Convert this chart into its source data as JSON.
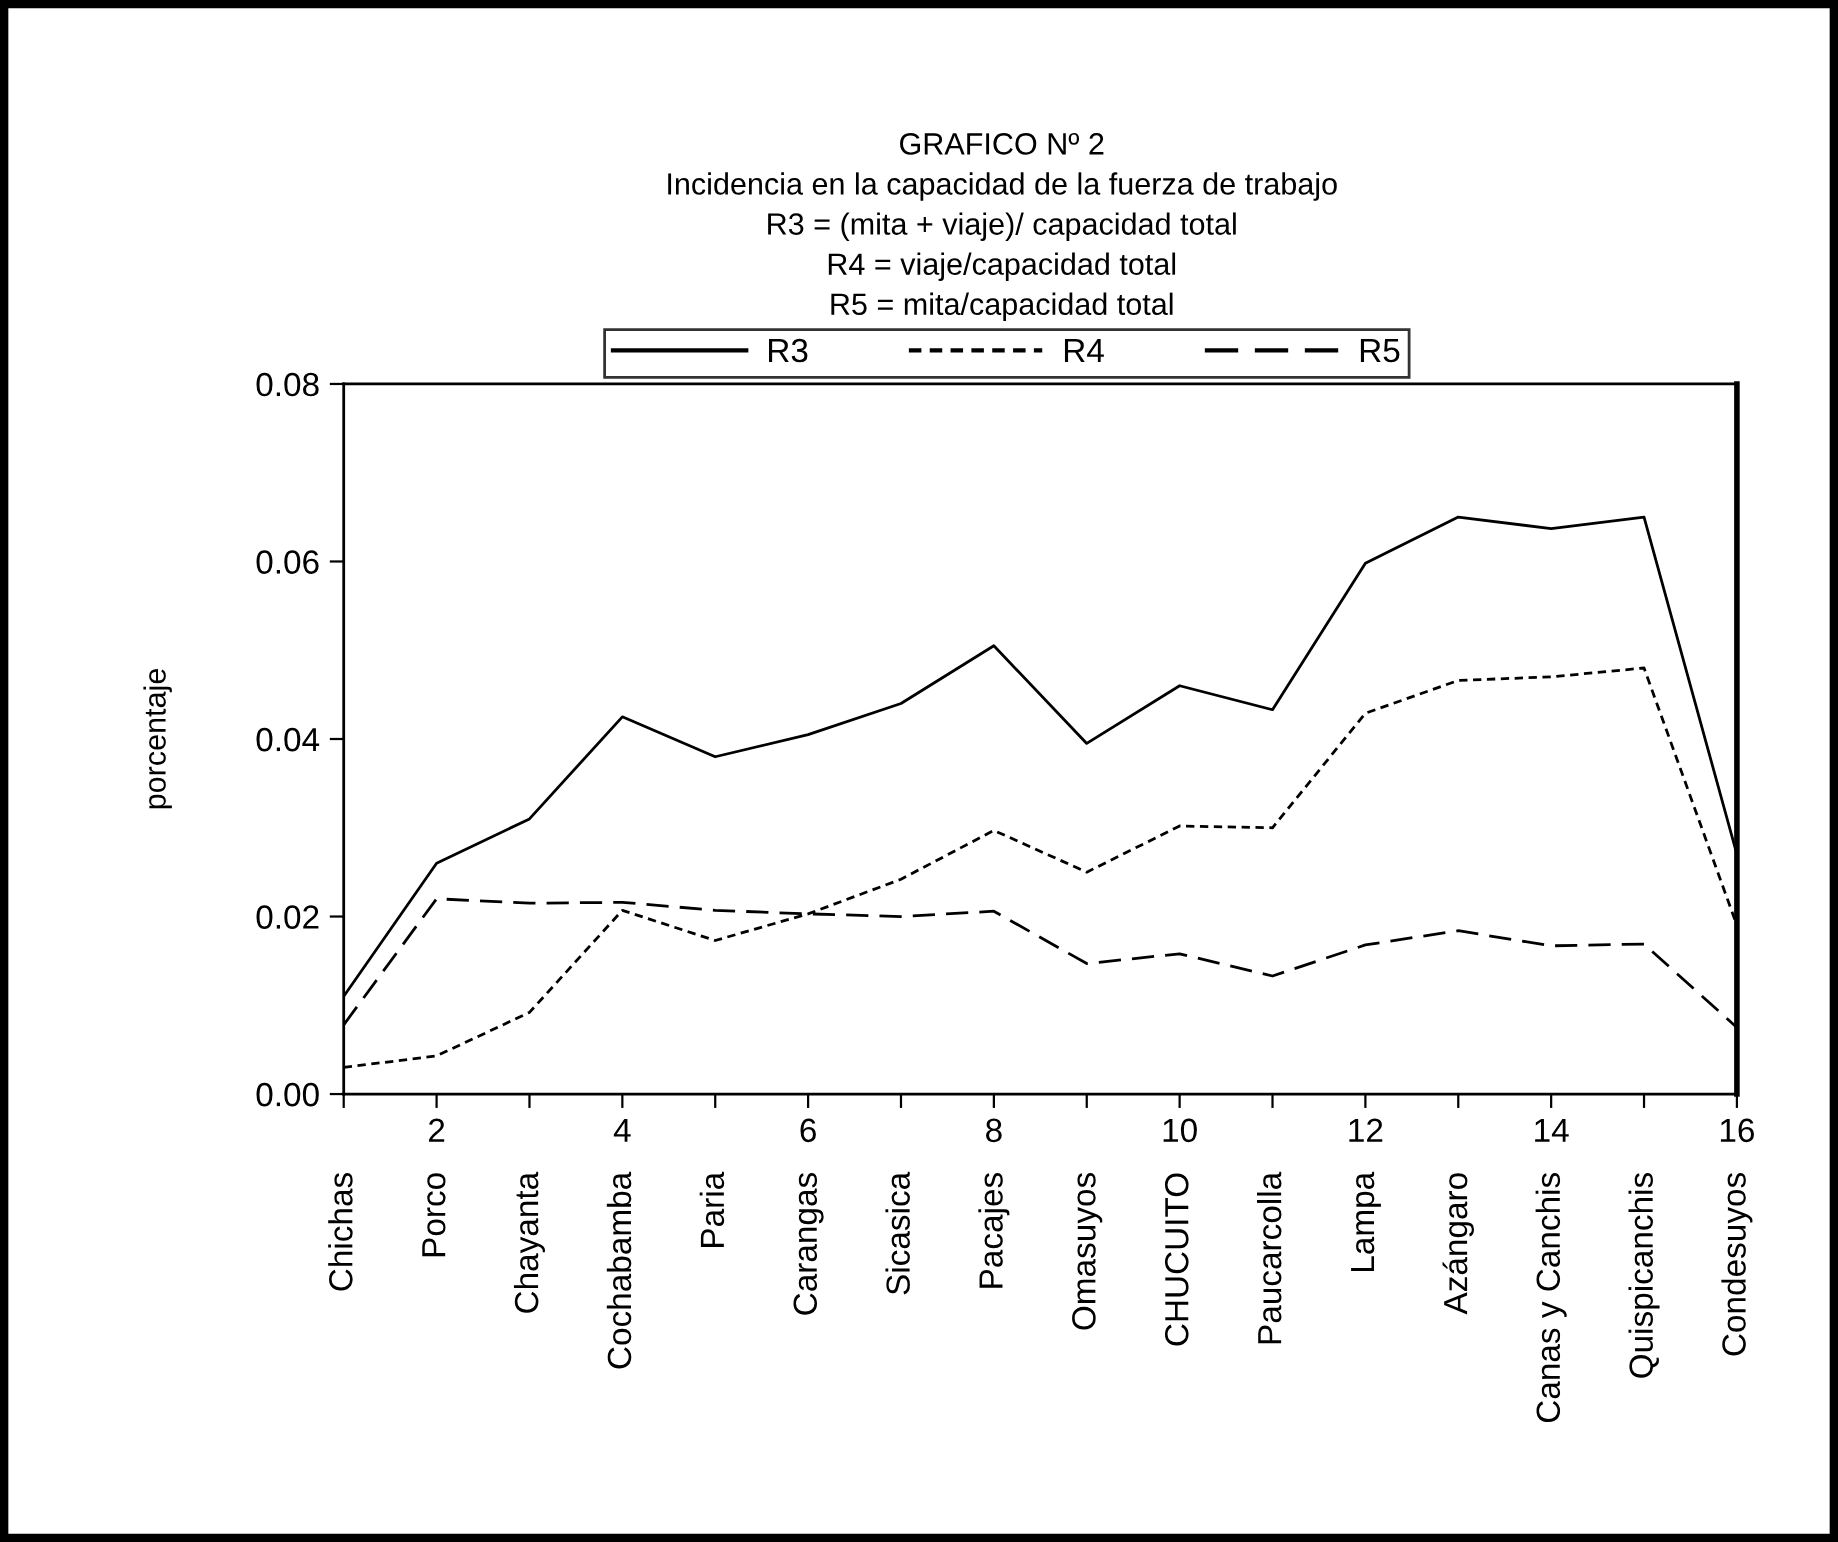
{
  "chart_data": {
    "type": "line",
    "title": "GRAFICO Nº 2",
    "subtitle": "Incidencia en la capacidad de la fuerza de trabajo",
    "annotations": [
      "R3 = (mita + viaje)/ capacidad total",
      "R4 = viaje/capacidad total",
      "R5 = mita/capacidad total",
      "Chichas",
      "Porco",
      "Chayanta",
      "Cochabamba",
      "Paria",
      "Carangas",
      "Sicasica",
      "Pacajes",
      "Omasuyos",
      "CHUCUITO",
      "Paucarcolla",
      "Lampa",
      "Azángaro",
      "Canas y Canchis",
      "Quispicanchis",
      "Condesuyos"
    ],
    "ylabel": "porcentaje",
    "x": [
      1,
      2,
      3,
      4,
      5,
      6,
      7,
      8,
      9,
      10,
      11,
      12,
      13,
      14,
      15,
      16
    ],
    "series": [
      {
        "name": "R3",
        "color": "#000000",
        "line_style": "solid",
        "values": [
          0.011,
          0.026,
          0.031,
          0.0425,
          0.038,
          0.0405,
          0.044,
          0.0505,
          0.0395,
          0.046,
          0.0433,
          0.0598,
          0.065,
          0.0637,
          0.065,
          0.027
        ]
      },
      {
        "name": "R4",
        "color": "#000000",
        "line_style": "dotted",
        "values": [
          0.003,
          0.0043,
          0.0092,
          0.0207,
          0.0173,
          0.0203,
          0.0242,
          0.0297,
          0.025,
          0.0302,
          0.03,
          0.0429,
          0.0466,
          0.047,
          0.048,
          0.019
        ]
      },
      {
        "name": "R5",
        "color": "#000000",
        "line_style": "dashed",
        "values": [
          0.0078,
          0.022,
          0.0215,
          0.0216,
          0.0207,
          0.0203,
          0.02,
          0.0206,
          0.0147,
          0.0158,
          0.0133,
          0.0168,
          0.0184,
          0.0167,
          0.0169,
          0.0075
        ]
      }
    ],
    "xlim": [
      1,
      16
    ],
    "xticks": [
      {
        "value": 1,
        "label": null
      },
      2,
      {
        "value": 3,
        "label": null
      },
      4,
      {
        "value": 5,
        "label": null
      },
      6,
      {
        "value": 7,
        "label": null
      },
      8,
      {
        "value": 9,
        "label": null
      },
      10,
      {
        "value": 11,
        "label": null
      },
      12,
      {
        "value": 13,
        "label": null
      },
      14,
      {
        "value": 15,
        "label": null
      },
      16
    ],
    "ylim": [
      0,
      0.08
    ],
    "yticks": [
      {
        "value": 0,
        "label": "0.00"
      },
      {
        "value": 0.02,
        "label": "0.02"
      },
      {
        "value": 0.04,
        "label": "0.04"
      },
      {
        "value": 0.06,
        "label": "0.06"
      },
      {
        "value": 0.08,
        "label": "0.08"
      }
    ],
    "grid": false,
    "legend": "top",
    "marker": "none"
  }
}
